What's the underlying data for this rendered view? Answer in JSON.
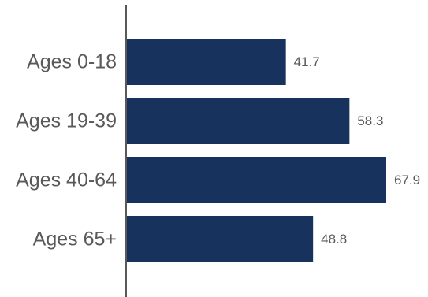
{
  "chart_data": {
    "type": "bar",
    "orientation": "horizontal",
    "categories": [
      "Ages 0-18",
      "Ages 19-39",
      "Ages 40-64",
      "Ages 65+"
    ],
    "values": [
      41.7,
      58.3,
      67.9,
      48.8
    ],
    "value_labels": [
      "41.7",
      "58.3",
      "67.9",
      "48.8"
    ],
    "title": "",
    "xlabel": "",
    "ylabel": "",
    "xlim": [
      0,
      70
    ],
    "grid": false,
    "legend": "none",
    "colors": {
      "bar": "#17325c",
      "axis": "#595959",
      "text": "#595959"
    }
  }
}
